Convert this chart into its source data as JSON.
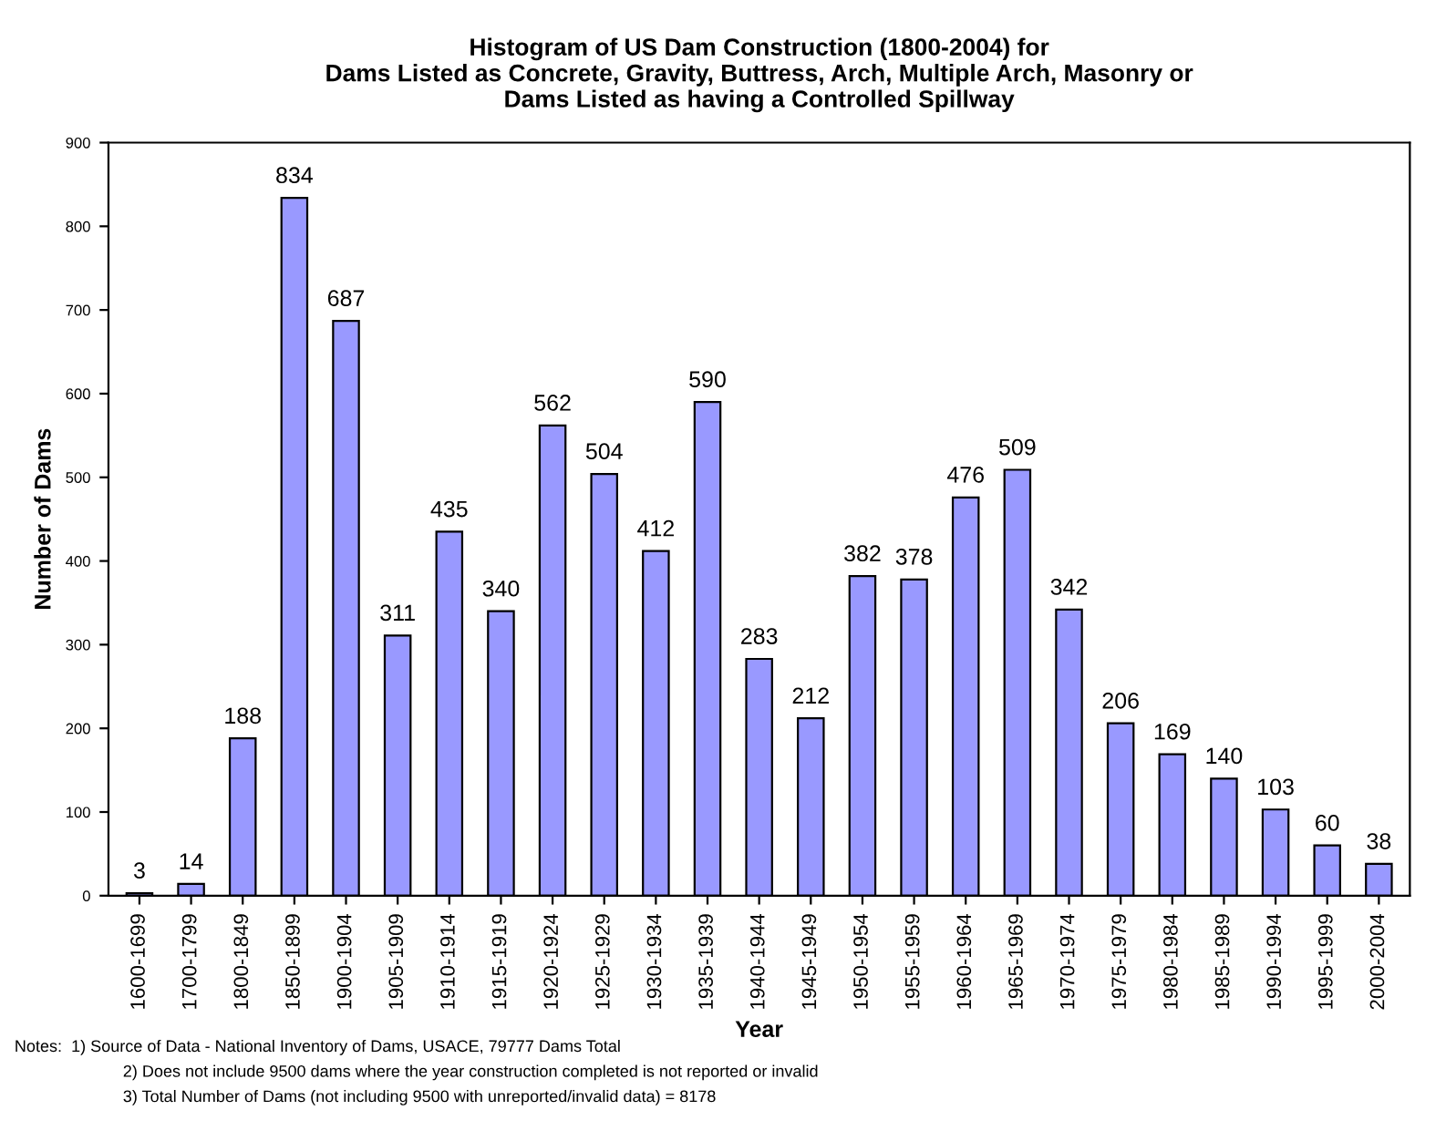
{
  "chart_data": {
    "type": "bar",
    "title": "Histogram of US Dam Construction (1800-2004) for\nDams Listed as Concrete, Gravity, Buttress, Arch, Multiple Arch, Masonry or\nDams Listed as having a Controlled Spillway",
    "xlabel": "Year",
    "ylabel": "Number of Dams",
    "categories": [
      "1600-1699",
      "1700-1799",
      "1800-1849",
      "1850-1899",
      "1900-1904",
      "1905-1909",
      "1910-1914",
      "1915-1919",
      "1920-1924",
      "1925-1929",
      "1930-1934",
      "1935-1939",
      "1940-1944",
      "1945-1949",
      "1950-1954",
      "1955-1959",
      "1960-1964",
      "1965-1969",
      "1970-1974",
      "1975-1979",
      "1980-1984",
      "1985-1989",
      "1990-1994",
      "1995-1999",
      "2000-2004"
    ],
    "values": [
      3,
      14,
      188,
      834,
      687,
      311,
      435,
      340,
      562,
      504,
      412,
      590,
      283,
      212,
      382,
      378,
      476,
      509,
      342,
      206,
      169,
      140,
      103,
      60,
      38
    ],
    "color": "#9999ff",
    "ylim": [
      0,
      900
    ],
    "yticks": [
      0,
      100,
      200,
      300,
      400,
      500,
      600,
      700,
      800,
      900
    ],
    "grid": false,
    "legend": false,
    "data_labels": true,
    "annotations": [
      "Notes:  1) Source of Data - National Inventory of Dams, USACE, 79777 Dams Total",
      "2) Does not include 9500 dams where the year construction completed is not reported or invalid",
      "3) Total Number of Dams (not including 9500 with unreported/invalid data) = 8178"
    ]
  }
}
